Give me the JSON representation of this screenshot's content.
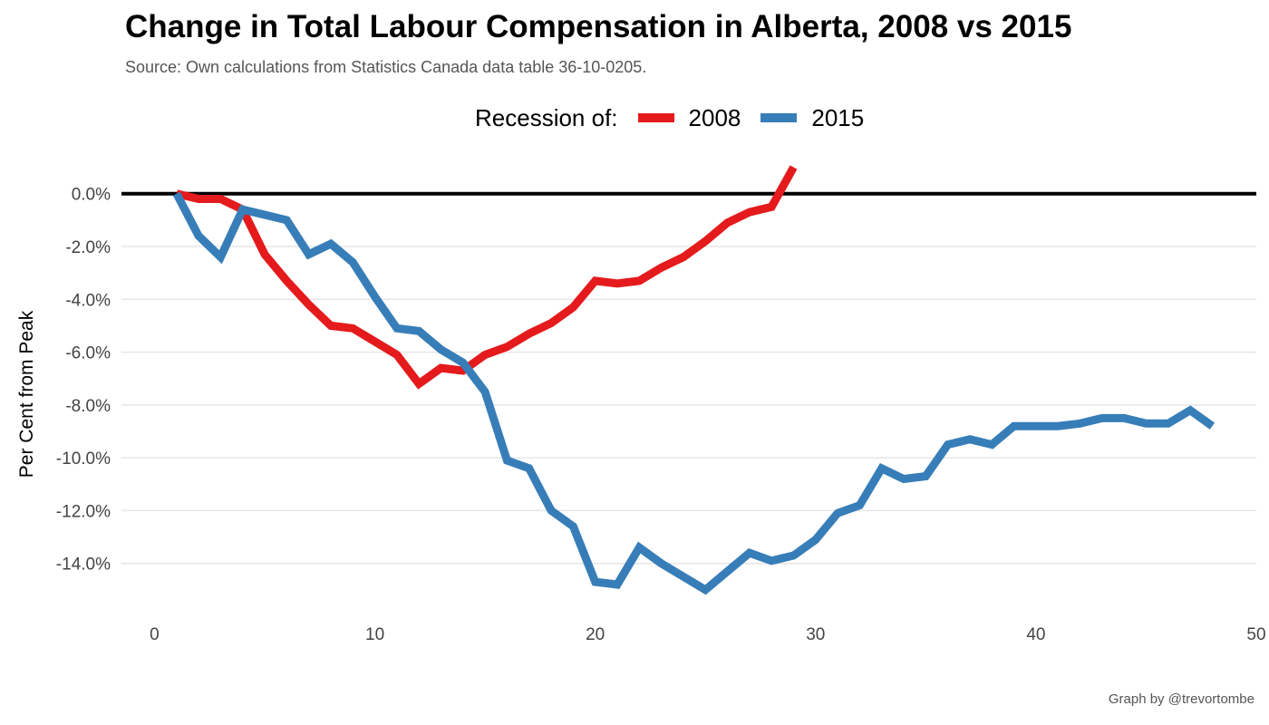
{
  "chart_data": {
    "type": "line",
    "title": "Change in Total Labour Compensation in Alberta, 2008 vs 2015",
    "subtitle": "Source: Own calculations from Statistics Canada data table 36-10-0205.",
    "caption": "Graph by @trevortombe",
    "xlabel": "",
    "ylabel": "Per Cent from Peak",
    "legend_title": "Recession of:",
    "legend_position": "top",
    "grid": true,
    "xlim": [
      -1.5,
      50
    ],
    "ylim": [
      -16,
      1.5
    ],
    "x_ticks": [
      0,
      10,
      20,
      30,
      40,
      50
    ],
    "x_tick_labels": [
      "0",
      "10",
      "20",
      "30",
      "40",
      "50"
    ],
    "y_ticks": [
      0,
      -2,
      -4,
      -6,
      -8,
      -10,
      -12,
      -14
    ],
    "y_tick_labels": [
      "0.0%",
      "-2.0%",
      "-4.0%",
      "-6.0%",
      "-8.0%",
      "-10.0%",
      "-12.0%",
      "-14.0%"
    ],
    "reference_line_y": 0,
    "series": [
      {
        "name": "2008",
        "color": "#e41a1c",
        "x": [
          1,
          2,
          3,
          4,
          5,
          6,
          7,
          8,
          9,
          10,
          11,
          12,
          13,
          14,
          15,
          16,
          17,
          18,
          19,
          20,
          21,
          22,
          23,
          24,
          25,
          26,
          27,
          28,
          29
        ],
        "values": [
          0,
          -0.2,
          -0.2,
          -0.6,
          -2.3,
          -3.3,
          -4.2,
          -5.0,
          -5.1,
          -5.6,
          -6.1,
          -7.2,
          -6.6,
          -6.7,
          -6.1,
          -5.8,
          -5.3,
          -4.9,
          -4.3,
          -3.3,
          -3.4,
          -3.3,
          -2.8,
          -2.4,
          -1.8,
          -1.1,
          -0.7,
          -0.5,
          1.0
        ]
      },
      {
        "name": "2015",
        "color": "#377eb8",
        "x": [
          1,
          2,
          3,
          4,
          5,
          6,
          7,
          8,
          9,
          10,
          11,
          12,
          13,
          14,
          15,
          16,
          17,
          18,
          19,
          20,
          21,
          22,
          23,
          24,
          25,
          26,
          27,
          28,
          29,
          30,
          31,
          32,
          33,
          34,
          35,
          36,
          37,
          38,
          39,
          40,
          41,
          42,
          43,
          44,
          45,
          46,
          47,
          48
        ],
        "values": [
          0,
          -1.6,
          -2.4,
          -0.6,
          -0.8,
          -1.0,
          -2.3,
          -1.9,
          -2.6,
          -3.9,
          -5.1,
          -5.2,
          -5.9,
          -6.4,
          -7.5,
          -10.1,
          -10.4,
          -12.0,
          -12.6,
          -14.7,
          -14.8,
          -13.4,
          -14.0,
          -14.5,
          -15.0,
          -14.3,
          -13.6,
          -13.9,
          -13.7,
          -13.1,
          -12.1,
          -11.8,
          -10.4,
          -10.8,
          -10.7,
          -9.5,
          -9.3,
          -9.5,
          -8.8,
          -8.8,
          -8.8,
          -8.7,
          -8.5,
          -8.5,
          -8.7,
          -8.7,
          -8.2,
          -8.8
        ]
      }
    ]
  }
}
